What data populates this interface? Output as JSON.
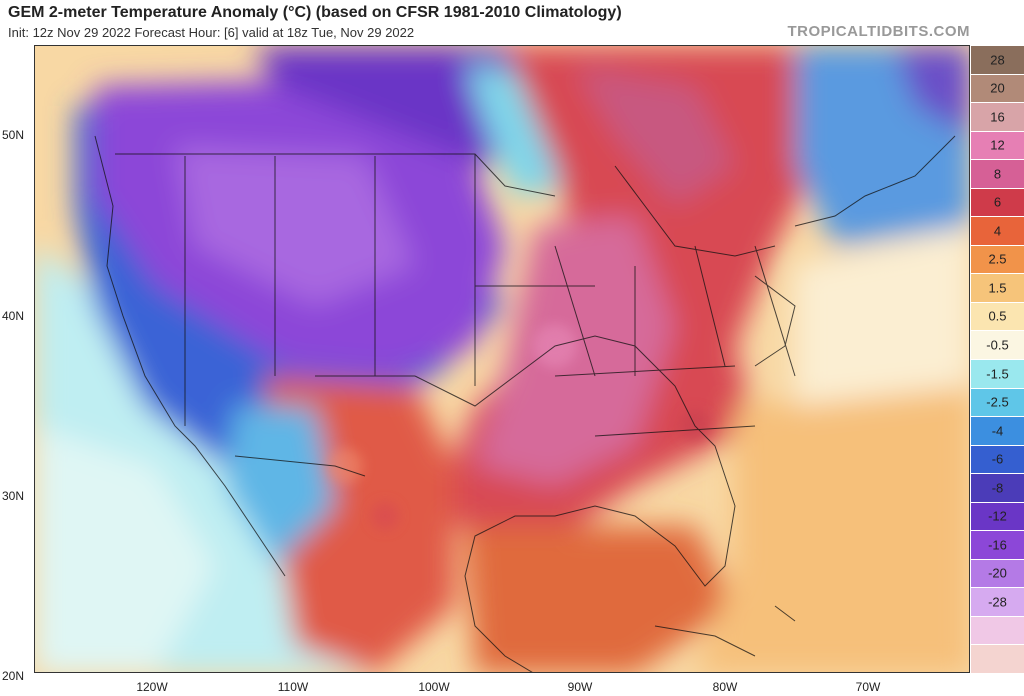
{
  "header": {
    "title": "GEM 2-meter Temperature Anomaly (°C) (based on CFSR 1981-2010 Climatology)",
    "subtitle": "Init: 12z Nov 29 2022   Forecast Hour: [6]   valid at 18z Tue, Nov 29 2022",
    "brand": "TROPICALTIDBITS.COM"
  },
  "axes": {
    "lat_labels": [
      "50N",
      "40N",
      "30N",
      "20N"
    ],
    "lon_labels": [
      "120W",
      "110W",
      "100W",
      "90W",
      "80W",
      "70W"
    ]
  },
  "colorbar": {
    "labels": [
      "28",
      "20",
      "16",
      "12",
      "8",
      "6",
      "4",
      "2.5",
      "1.5",
      "0.5",
      "-0.5",
      "-1.5",
      "-2.5",
      "-4",
      "-6",
      "-8",
      "-12",
      "-16",
      "-20",
      "-28"
    ],
    "colors": [
      "#8a6e5c",
      "#b18a78",
      "#d8a4a8",
      "#e67fb4",
      "#d66096",
      "#cf3b4a",
      "#e8643a",
      "#f1934a",
      "#f6c47a",
      "#fbe5b0",
      "#fbf6e2",
      "#9ae8ee",
      "#5fc6e8",
      "#3c8fe0",
      "#355fd0",
      "#4b3cb8",
      "#6a36c6",
      "#8c47d8",
      "#b47ae6",
      "#d6aaf0",
      "#f0c8e6",
      "#f4d4d0"
    ]
  }
}
